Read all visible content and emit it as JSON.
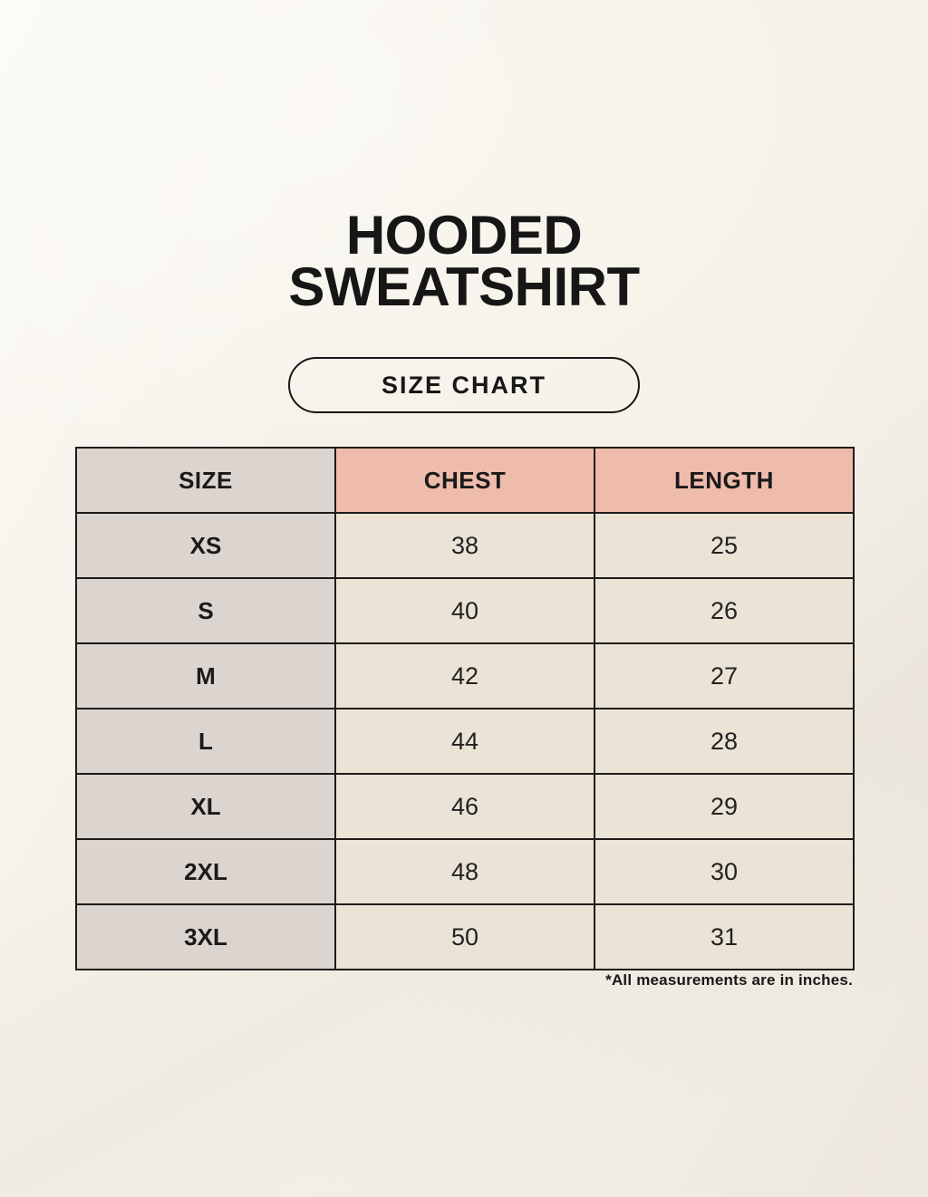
{
  "page": {
    "title_line1": "HOODED",
    "title_line2": "SWEATSHIRT",
    "badge_label": "SIZE CHART",
    "footnote": "*All measurements are in inches."
  },
  "colors": {
    "background": "#f6f2e9",
    "header_accent_pink": "#efbcab",
    "size_column_gray": "#dbd4cf",
    "value_cell_cream": "#ebe4d6",
    "table_border": "#1d1c1a",
    "text": "#1a1a1a"
  },
  "table": {
    "columns": [
      "SIZE",
      "CHEST",
      "LENGTH"
    ],
    "rows": [
      {
        "size": "XS",
        "chest": "38",
        "length": "25"
      },
      {
        "size": "S",
        "chest": "40",
        "length": "26"
      },
      {
        "size": "M",
        "chest": "42",
        "length": "27"
      },
      {
        "size": "L",
        "chest": "44",
        "length": "28"
      },
      {
        "size": "XL",
        "chest": "46",
        "length": "29"
      },
      {
        "size": "2XL",
        "chest": "48",
        "length": "30"
      },
      {
        "size": "3XL",
        "chest": "50",
        "length": "31"
      }
    ]
  }
}
